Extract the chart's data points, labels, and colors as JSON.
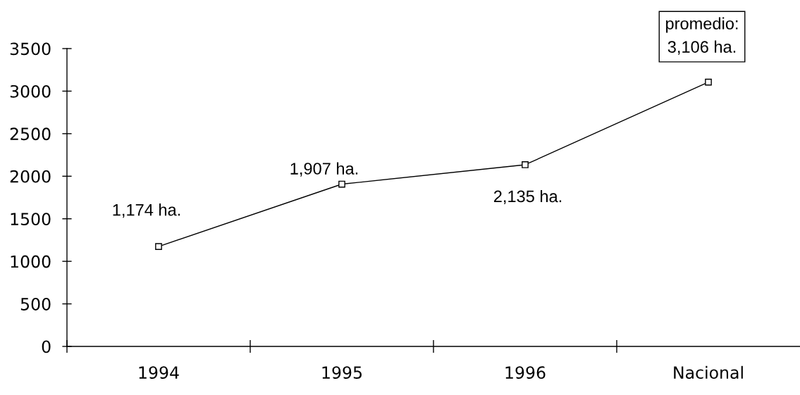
{
  "chart_data": {
    "type": "line",
    "categories": [
      "1994",
      "1995",
      "1996",
      "Nacional"
    ],
    "values": [
      1174,
      1907,
      2135,
      3106
    ],
    "color": "#000000",
    "value_labels": [
      "1,174 ha.",
      "1,907 ha.",
      "2,135 ha.",
      "promedio:\n3,106 ha."
    ],
    "ylim": [
      0,
      3500
    ],
    "yticks": [
      0,
      500,
      1000,
      1500,
      2000,
      2500,
      3000,
      3500
    ],
    "grid": false,
    "marker": "square",
    "line_style": "solid"
  }
}
